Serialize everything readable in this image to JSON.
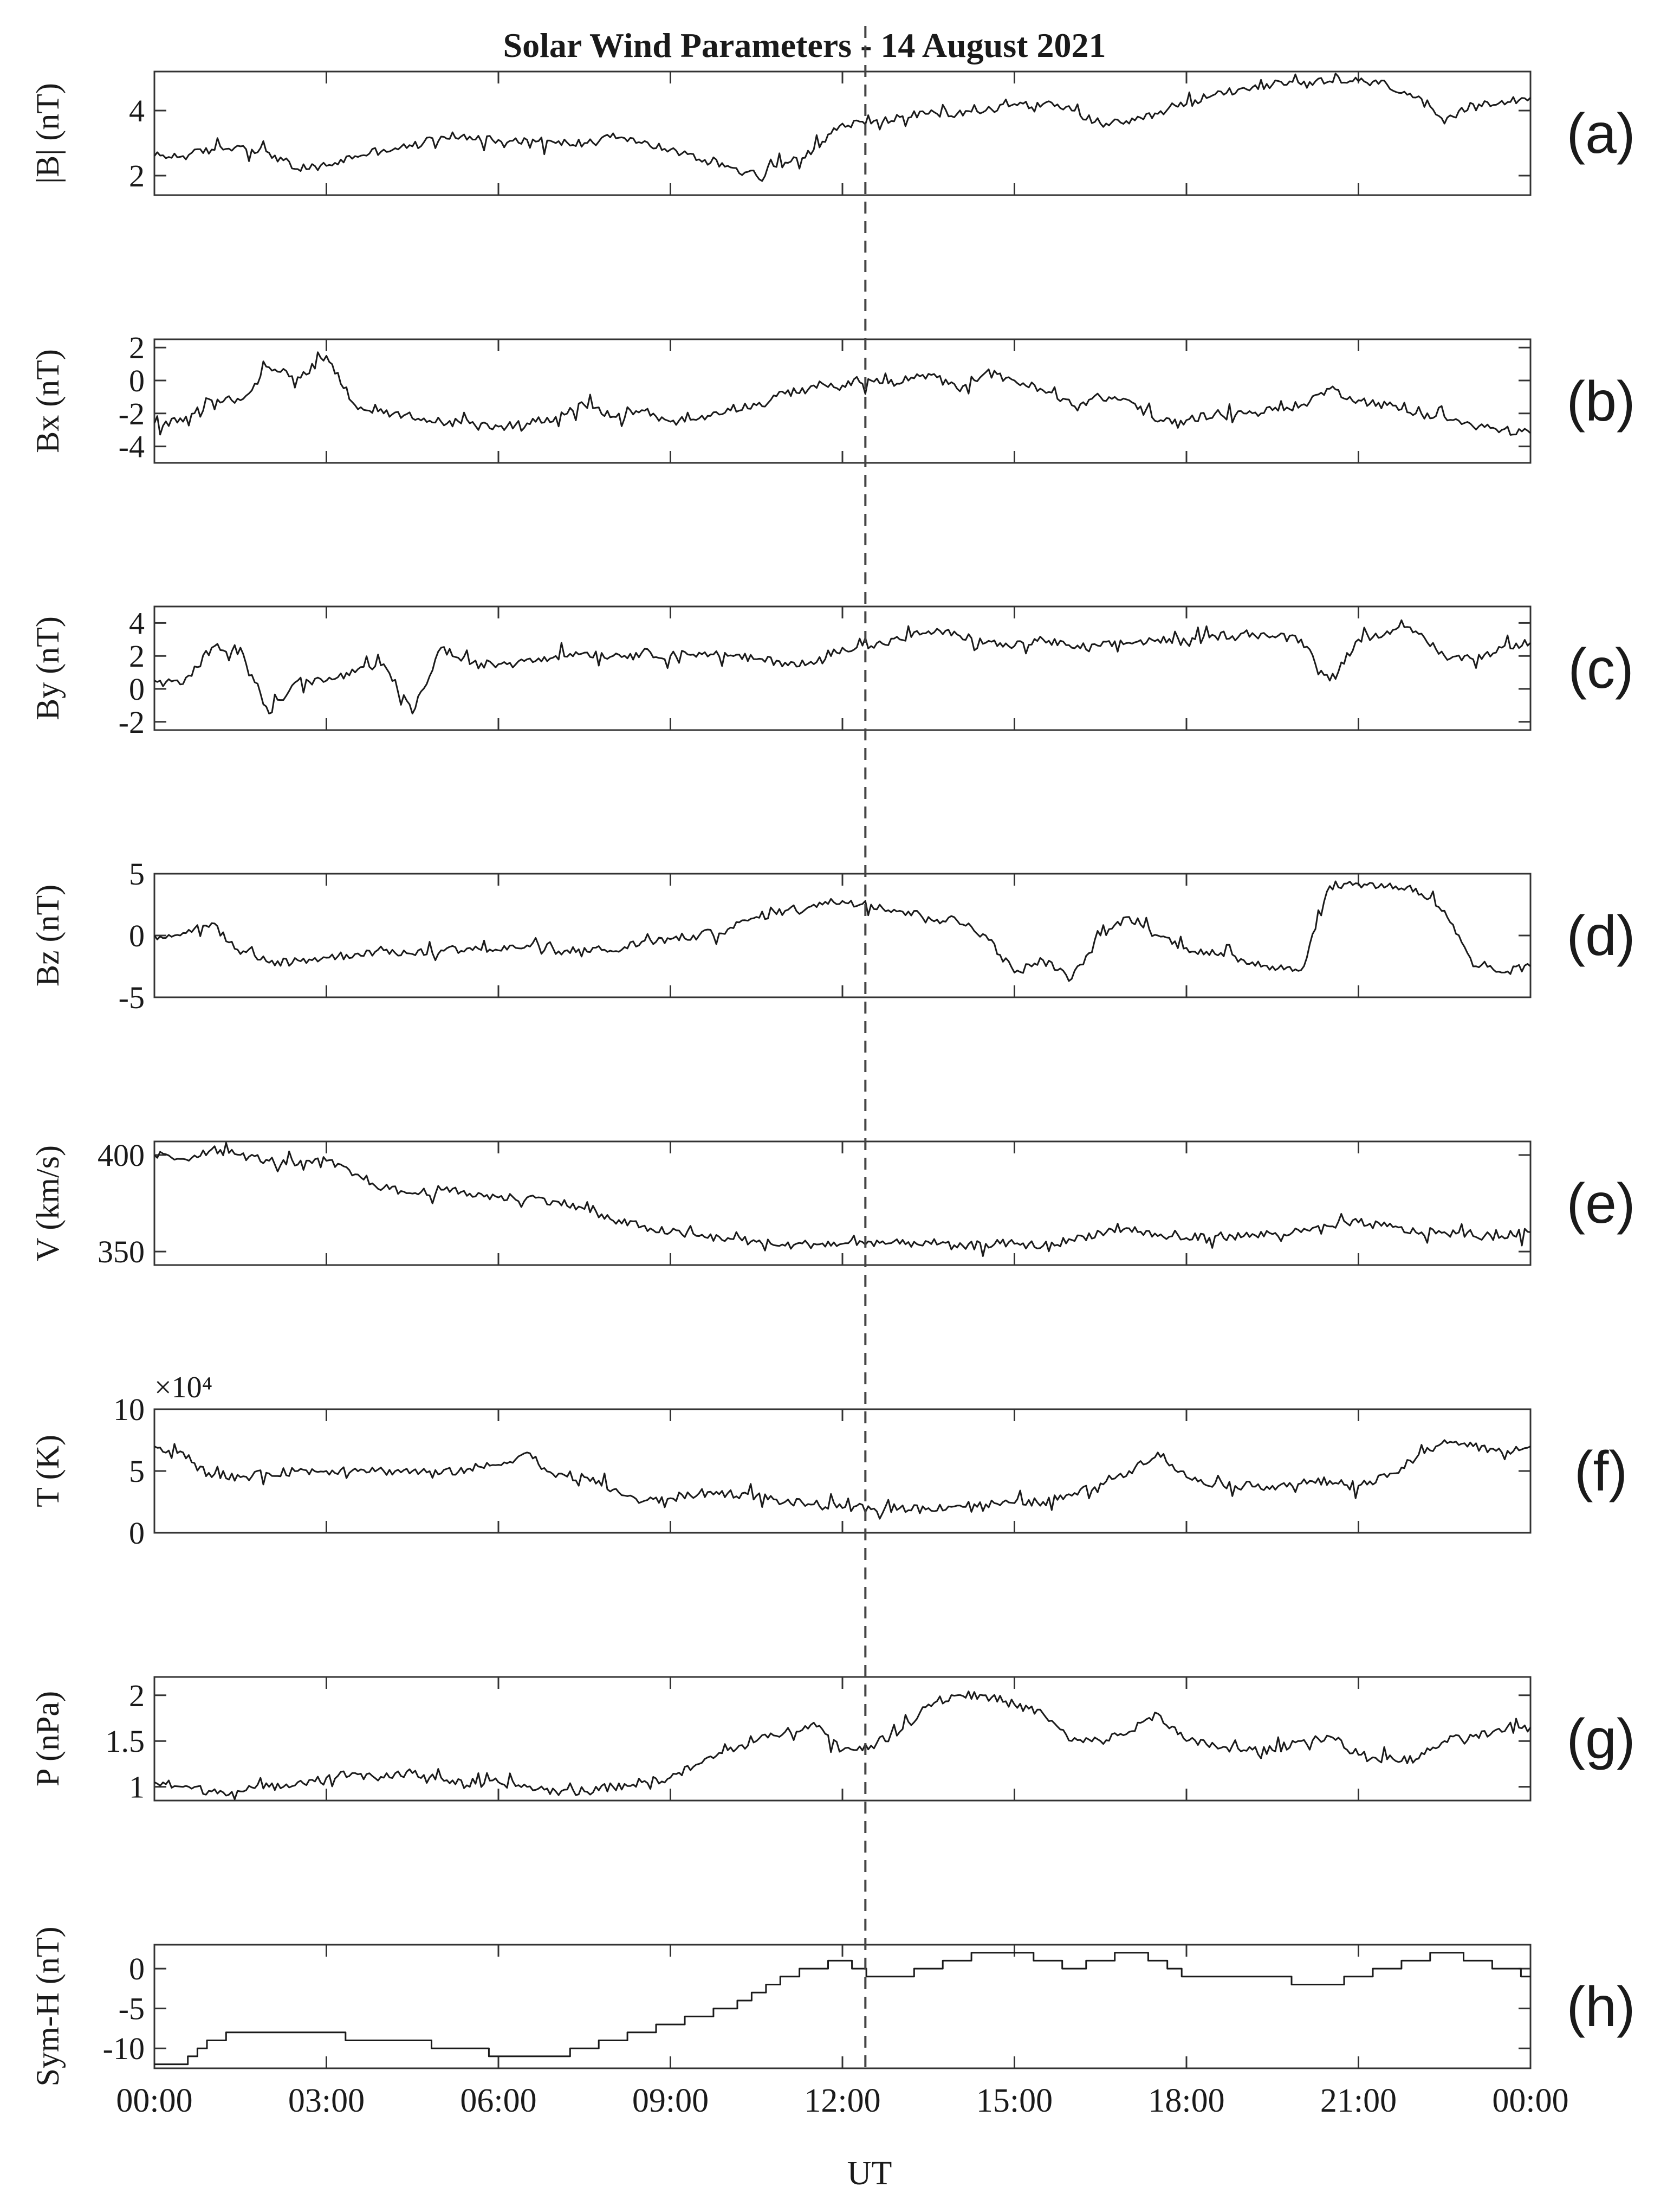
{
  "chart_data": {
    "type": "line",
    "title": "Solar Wind Parameters - 14 August 2021",
    "xlabel": "UT",
    "x_ticks": [
      "00:00",
      "03:00",
      "06:00",
      "09:00",
      "12:00",
      "15:00",
      "18:00",
      "21:00",
      "00:00"
    ],
    "xlim_hours": [
      0,
      24
    ],
    "marker_time_hours": 12.4,
    "panels": [
      {
        "tag": "(a)",
        "ylabel": "|B| (nT)",
        "ylim": [
          1.4,
          5.2
        ],
        "yticks": [
          2,
          4
        ],
        "tick_labels": [
          "2",
          "4"
        ],
        "multiplier": "",
        "series": {
          "name": "|B|",
          "x": [
            0,
            0.5,
            1,
            1.5,
            2,
            2.5,
            3,
            3.5,
            4,
            4.5,
            5,
            5.5,
            6,
            6.5,
            7,
            7.5,
            8,
            8.5,
            9,
            9.5,
            10,
            10.5,
            11,
            11.5,
            12,
            12.5,
            13,
            13.5,
            14,
            14.5,
            15,
            15.5,
            16,
            16.5,
            17,
            17.5,
            18,
            18.5,
            19,
            19.5,
            20,
            20.5,
            21,
            21.5,
            22,
            22.5,
            23,
            23.5,
            24
          ],
          "y": [
            2.6,
            2.6,
            2.8,
            2.9,
            2.7,
            2.2,
            2.3,
            2.6,
            2.8,
            2.9,
            3.2,
            3.2,
            3.1,
            3.1,
            3.0,
            3.0,
            3.3,
            3.0,
            2.8,
            2.5,
            2.3,
            2.0,
            2.4,
            2.8,
            3.6,
            3.6,
            3.8,
            3.9,
            3.9,
            4.0,
            4.2,
            4.2,
            4.0,
            3.6,
            3.6,
            3.9,
            4.2,
            4.5,
            4.7,
            4.8,
            4.8,
            4.9,
            4.9,
            4.8,
            4.4,
            3.6,
            4.2,
            4.3,
            4.4
          ]
        }
      },
      {
        "tag": "(b)",
        "ylabel": "Bx (nT)",
        "ylim": [
          -5,
          2.5
        ],
        "yticks": [
          -4,
          -2,
          0,
          2
        ],
        "tick_labels": [
          "-4",
          "-2",
          "0",
          "2"
        ],
        "multiplier": "",
        "series": {
          "name": "Bx",
          "x": [
            0,
            0.5,
            1,
            1.5,
            2,
            2.5,
            3,
            3.5,
            4,
            4.5,
            5,
            5.5,
            6,
            6.5,
            7,
            7.5,
            8,
            8.5,
            9,
            9.5,
            10,
            10.5,
            11,
            11.5,
            12,
            12.5,
            13,
            13.5,
            14,
            14.5,
            15,
            15.5,
            16,
            16.5,
            17,
            17.5,
            18,
            18.5,
            19,
            19.5,
            20,
            20.5,
            21,
            21.5,
            22,
            22.5,
            23,
            23.5,
            24
          ],
          "y": [
            -2.6,
            -2.5,
            -1.2,
            -1.2,
            0.8,
            0.2,
            1.5,
            -1.5,
            -2.0,
            -2.3,
            -2.5,
            -2.6,
            -2.8,
            -2.6,
            -2.2,
            -1.5,
            -2.2,
            -1.8,
            -2.5,
            -2.3,
            -1.7,
            -1.5,
            -0.8,
            -0.3,
            -0.3,
            0.0,
            -0.2,
            0.4,
            -0.5,
            0.5,
            0.0,
            -0.6,
            -1.5,
            -1.0,
            -1.2,
            -2.5,
            -2.4,
            -2.0,
            -2.0,
            -1.8,
            -1.5,
            -0.5,
            -1.2,
            -1.5,
            -2.0,
            -2.2,
            -2.8,
            -3.0,
            -3.2
          ]
        }
      },
      {
        "tag": "(c)",
        "ylabel": "By (nT)",
        "ylim": [
          -2.5,
          5
        ],
        "yticks": [
          -2,
          0,
          2,
          4
        ],
        "tick_labels": [
          "-2",
          "0",
          "2",
          "4"
        ],
        "multiplier": "",
        "series": {
          "name": "By",
          "x": [
            0,
            0.5,
            1,
            1.5,
            2,
            2.5,
            3,
            3.5,
            4,
            4.5,
            5,
            5.5,
            6,
            6.5,
            7,
            7.5,
            8,
            8.5,
            9,
            9.5,
            10,
            10.5,
            11,
            11.5,
            12,
            12.5,
            13,
            13.5,
            14,
            14.5,
            15,
            15.5,
            16,
            16.5,
            17,
            17.5,
            18,
            18.5,
            19,
            19.5,
            20,
            20.5,
            21,
            21.5,
            22,
            22.5,
            23,
            23.5,
            24
          ],
          "y": [
            0.5,
            0.3,
            2.5,
            2.5,
            -1.5,
            0.5,
            0.5,
            1.0,
            1.5,
            -1.5,
            2.5,
            1.5,
            1.5,
            1.8,
            2.0,
            2.2,
            2.0,
            2.2,
            2.0,
            2.2,
            2.0,
            1.8,
            1.6,
            1.5,
            2.5,
            2.6,
            3.0,
            3.5,
            3.3,
            2.8,
            2.6,
            3.0,
            2.5,
            2.6,
            2.8,
            3.0,
            2.8,
            3.2,
            3.4,
            3.2,
            3.0,
            0.5,
            3.0,
            3.5,
            3.5,
            2.0,
            1.8,
            2.5,
            2.8
          ]
        }
      },
      {
        "tag": "(d)",
        "ylabel": "Bz (nT)",
        "ylim": [
          -5,
          5
        ],
        "yticks": [
          -5,
          0,
          5
        ],
        "tick_labels": [
          "-5",
          "0",
          "5"
        ],
        "multiplier": "",
        "series": {
          "name": "Bz",
          "x": [
            0,
            0.5,
            1,
            1.5,
            2,
            2.5,
            3,
            3.5,
            4,
            4.5,
            5,
            5.5,
            6,
            6.5,
            7,
            7.5,
            8,
            8.5,
            9,
            9.5,
            10,
            10.5,
            11,
            11.5,
            12,
            12.5,
            13,
            13.5,
            14,
            14.5,
            15,
            15.5,
            16,
            16.5,
            17,
            17.5,
            18,
            18.5,
            19,
            19.5,
            20,
            20.5,
            21,
            21.5,
            22,
            22.5,
            23,
            23.5,
            24
          ],
          "y": [
            0.0,
            0.2,
            1.0,
            -1.5,
            -2.2,
            -2.0,
            -1.8,
            -1.5,
            -1.2,
            -1.5,
            -1.2,
            -1.0,
            -1.2,
            -0.8,
            -1.5,
            -1.0,
            -1.3,
            -0.5,
            -0.3,
            0.0,
            0.5,
            1.5,
            2.0,
            2.5,
            2.8,
            2.5,
            2.0,
            1.5,
            1.2,
            0.0,
            -3.0,
            -2.0,
            -3.5,
            0.0,
            1.5,
            0.0,
            -1.0,
            -1.5,
            -2.0,
            -2.5,
            -2.8,
            4.0,
            4.2,
            4.0,
            3.8,
            2.0,
            -2.5,
            -3.0,
            -2.5
          ]
        }
      },
      {
        "tag": "(e)",
        "ylabel": "V (km/s)",
        "ylim": [
          343,
          407
        ],
        "yticks": [
          350,
          400
        ],
        "tick_labels": [
          "350",
          "400"
        ],
        "multiplier": "",
        "series": {
          "name": "V",
          "x": [
            0,
            0.5,
            1,
            1.5,
            2,
            2.5,
            3,
            3.5,
            4,
            4.5,
            5,
            5.5,
            6,
            6.5,
            7,
            7.5,
            8,
            8.5,
            9,
            9.5,
            10,
            10.5,
            11,
            11.5,
            12,
            12.5,
            13,
            13.5,
            14,
            14.5,
            15,
            15.5,
            16,
            16.5,
            17,
            17.5,
            18,
            18.5,
            19,
            19.5,
            20,
            20.5,
            21,
            21.5,
            22,
            22.5,
            23,
            23.5,
            24
          ],
          "y": [
            400,
            398,
            403,
            400,
            397,
            395,
            397,
            390,
            383,
            380,
            382,
            380,
            378,
            378,
            376,
            372,
            366,
            363,
            360,
            358,
            357,
            355,
            353,
            354,
            354,
            355,
            354,
            355,
            352,
            354,
            354,
            353,
            356,
            360,
            362,
            358,
            357,
            358,
            358,
            359,
            360,
            363,
            365,
            363,
            360,
            360,
            358,
            358,
            360
          ]
        }
      },
      {
        "tag": "(f)",
        "ylabel": "T (K)",
        "ylim": [
          0,
          10
        ],
        "yticks": [
          0,
          5,
          10
        ],
        "tick_labels": [
          "0",
          "5",
          "10"
        ],
        "multiplier": "×10⁴",
        "series": {
          "name": "T",
          "x": [
            0,
            0.5,
            1,
            1.5,
            2,
            2.5,
            3,
            3.5,
            4,
            4.5,
            5,
            5.5,
            6,
            6.5,
            7,
            7.5,
            8,
            8.5,
            9,
            9.5,
            10,
            10.5,
            11,
            11.5,
            12,
            12.5,
            13,
            13.5,
            14,
            14.5,
            15,
            15.5,
            16,
            16.5,
            17,
            17.5,
            18,
            18.5,
            19,
            19.5,
            20,
            20.5,
            21,
            21.5,
            22,
            22.5,
            23,
            23.5,
            24
          ],
          "y": [
            7.0,
            6.5,
            4.5,
            4.5,
            4.8,
            5.0,
            5.0,
            5.2,
            5.0,
            5.0,
            4.8,
            5.2,
            5.5,
            6.5,
            4.5,
            4.5,
            3.5,
            2.5,
            2.8,
            3.2,
            3.2,
            3.0,
            2.5,
            2.3,
            2.0,
            1.9,
            2.0,
            2.0,
            2.2,
            2.3,
            2.4,
            2.5,
            3.0,
            4.0,
            5.0,
            6.5,
            4.5,
            4.0,
            3.8,
            3.8,
            4.0,
            4.2,
            3.8,
            4.5,
            6.0,
            7.5,
            7.0,
            6.5,
            7.0
          ]
        }
      },
      {
        "tag": "(g)",
        "ylabel": "P (nPa)",
        "ylim": [
          0.85,
          2.2
        ],
        "yticks": [
          1,
          1.5,
          2
        ],
        "tick_labels": [
          "1",
          "1.5",
          "2"
        ],
        "multiplier": "",
        "series": {
          "name": "P",
          "x": [
            0,
            0.5,
            1,
            1.5,
            2,
            2.5,
            3,
            3.5,
            4,
            4.5,
            5,
            5.5,
            6,
            6.5,
            7,
            7.5,
            8,
            8.5,
            9,
            9.5,
            10,
            10.5,
            11,
            11.5,
            12,
            12.5,
            13,
            13.5,
            14,
            14.5,
            15,
            15.5,
            16,
            16.5,
            17,
            17.5,
            18,
            18.5,
            19,
            19.5,
            20,
            20.5,
            21,
            21.5,
            22,
            22.5,
            23,
            23.5,
            24
          ],
          "y": [
            1.05,
            1.0,
            0.95,
            0.95,
            1.0,
            1.05,
            1.1,
            1.15,
            1.1,
            1.15,
            1.1,
            1.0,
            1.05,
            1.0,
            0.95,
            0.95,
            1.0,
            1.05,
            1.1,
            1.25,
            1.4,
            1.5,
            1.6,
            1.7,
            1.4,
            1.45,
            1.6,
            1.9,
            2.0,
            2.0,
            1.9,
            1.8,
            1.5,
            1.5,
            1.6,
            1.8,
            1.5,
            1.45,
            1.4,
            1.4,
            1.5,
            1.55,
            1.35,
            1.3,
            1.3,
            1.5,
            1.55,
            1.6,
            1.65
          ]
        }
      },
      {
        "tag": "(h)",
        "ylabel": "Sym-H (nT)",
        "ylim": [
          -12.5,
          3
        ],
        "yticks": [
          -10,
          -5,
          0
        ],
        "tick_labels": [
          "-10",
          "-5",
          "0"
        ],
        "multiplier": "",
        "series": {
          "name": "Sym-H",
          "x": [
            0,
            0.5,
            1,
            1.5,
            2,
            2.5,
            3,
            3.5,
            4,
            4.5,
            5,
            5.5,
            6,
            6.5,
            7,
            7.5,
            8,
            8.5,
            9,
            9.5,
            10,
            10.5,
            11,
            11.5,
            12,
            12.5,
            13,
            13.5,
            14,
            14.5,
            15,
            15.5,
            16,
            16.5,
            17,
            17.5,
            18,
            18.5,
            19,
            19.5,
            20,
            20.5,
            21,
            21.5,
            22,
            22.5,
            23,
            23.5,
            24
          ],
          "y": [
            -12,
            -12,
            -9,
            -8,
            -8,
            -8,
            -8,
            -9,
            -9,
            -9,
            -10,
            -10,
            -11,
            -11,
            -11,
            -10,
            -9,
            -8,
            -7,
            -6,
            -5,
            -3,
            -1,
            0,
            1,
            -1,
            -1,
            0,
            1,
            2,
            2,
            1,
            0,
            1,
            2,
            1,
            -1,
            -1,
            -1,
            -1,
            -2,
            -2,
            -1,
            0,
            1,
            2,
            1,
            0,
            -1
          ]
        }
      }
    ]
  }
}
